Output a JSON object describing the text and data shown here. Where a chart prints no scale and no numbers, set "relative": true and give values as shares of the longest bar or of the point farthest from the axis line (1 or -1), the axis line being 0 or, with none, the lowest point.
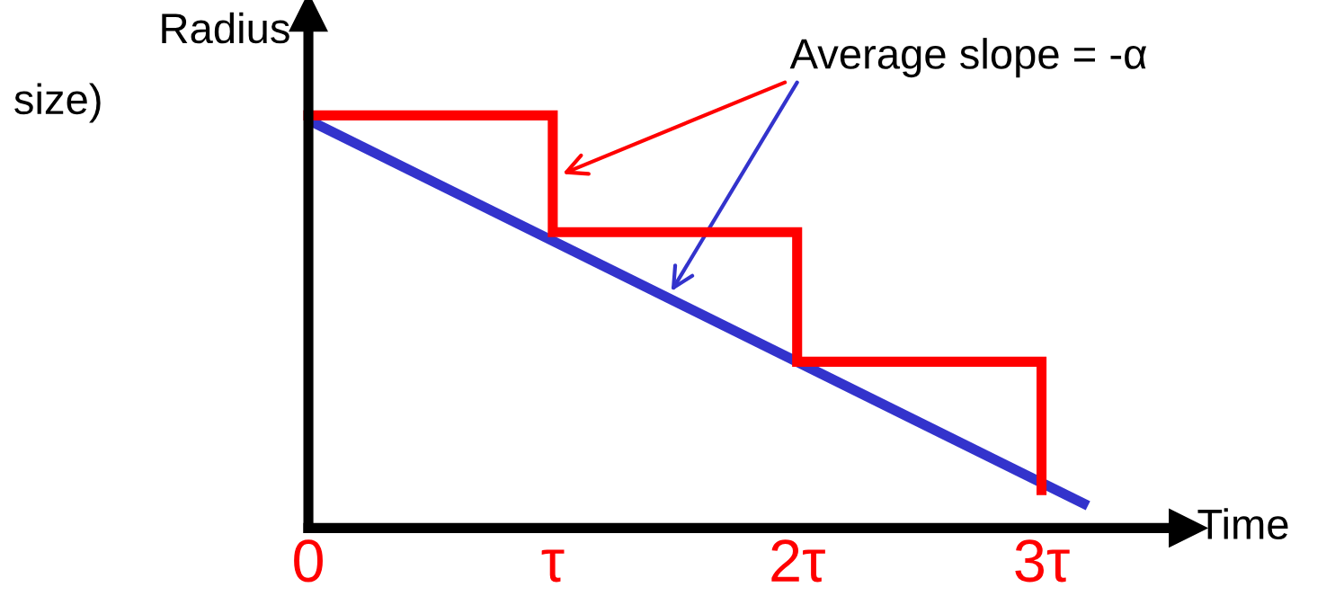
{
  "chart_data": {
    "type": "line",
    "relative": true,
    "ylabel": "Radius",
    "xlabel": "Time",
    "xlim": [
      0,
      3.6
    ],
    "xticks": [
      0,
      {
        "value": 1,
        "label": "τ"
      },
      {
        "value": 2,
        "label": "2τ"
      },
      {
        "value": 3,
        "label": "3τ"
      }
    ],
    "tick_labels": "x",
    "grid": false,
    "legend": false,
    "series": [
      {
        "color": "#3333cc",
        "x": [
          0,
          3.19
        ],
        "values": [
          0.989,
          0.054
        ]
      },
      {
        "type": "step",
        "color": "#ff0000",
        "x": [
          0,
          1,
          2,
          3
        ],
        "values": [
          1,
          0.717,
          0.403,
          0.092
        ]
      }
    ],
    "annotations": [
      "Average slope = -α",
      "size)"
    ]
  }
}
